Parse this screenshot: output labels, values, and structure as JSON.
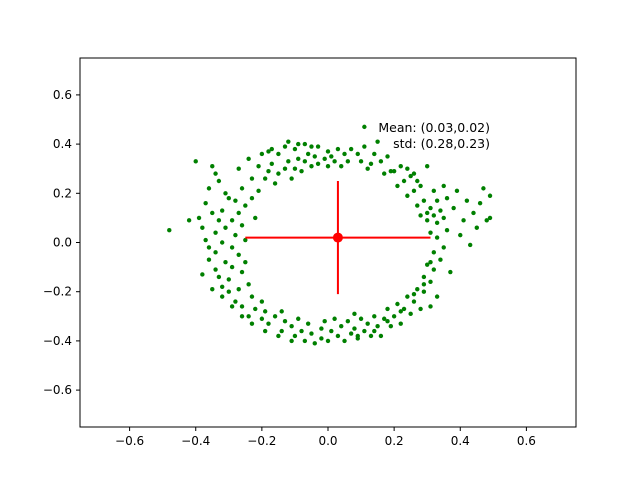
{
  "chart_data": {
    "type": "scatter",
    "title": "",
    "xlabel": "",
    "ylabel": "",
    "xlim": [
      -0.75,
      0.75
    ],
    "ylim": [
      -0.75,
      0.75
    ],
    "grid": false,
    "xticks": [
      -0.6,
      -0.4,
      -0.2,
      0.0,
      0.2,
      0.4,
      0.6
    ],
    "yticks": [
      -0.6,
      -0.4,
      -0.2,
      0.0,
      0.2,
      0.4,
      0.6
    ],
    "xtick_labels": [
      "−0.6",
      "−0.4",
      "−0.2",
      "0.0",
      "0.2",
      "0.4",
      "0.6"
    ],
    "ytick_labels": [
      "−0.6",
      "−0.4",
      "−0.2",
      "0.0",
      "0.2",
      "0.4",
      "0.6"
    ],
    "scatter_color": "#008000",
    "points": [
      [
        -0.48,
        0.05
      ],
      [
        -0.42,
        0.09
      ],
      [
        -0.4,
        0.33
      ],
      [
        -0.39,
        0.1
      ],
      [
        -0.38,
        0.06
      ],
      [
        -0.37,
        0.16
      ],
      [
        -0.37,
        0.01
      ],
      [
        -0.36,
        -0.02
      ],
      [
        -0.36,
        -0.07
      ],
      [
        -0.35,
        0.31
      ],
      [
        -0.35,
        0.12
      ],
      [
        -0.34,
        0.28
      ],
      [
        -0.34,
        0.04
      ],
      [
        -0.34,
        -0.04
      ],
      [
        -0.34,
        -0.11
      ],
      [
        -0.33,
        0.09
      ],
      [
        -0.33,
        -0.14
      ],
      [
        -0.32,
        0.13
      ],
      [
        -0.32,
        0.0
      ],
      [
        -0.32,
        -0.18
      ],
      [
        -0.31,
        0.2
      ],
      [
        -0.31,
        0.06
      ],
      [
        -0.31,
        -0.08
      ],
      [
        -0.3,
        -0.15
      ],
      [
        -0.3,
        -0.2
      ],
      [
        -0.29,
        0.09
      ],
      [
        -0.29,
        -0.02
      ],
      [
        -0.29,
        -0.1
      ],
      [
        -0.28,
        0.17
      ],
      [
        -0.28,
        0.03
      ],
      [
        -0.28,
        -0.24
      ],
      [
        -0.27,
        0.12
      ],
      [
        -0.27,
        -0.05
      ],
      [
        -0.27,
        -0.19
      ],
      [
        -0.26,
        0.22
      ],
      [
        -0.26,
        0.07
      ],
      [
        -0.26,
        -0.12
      ],
      [
        -0.26,
        -0.26
      ],
      [
        -0.25,
        0.15
      ],
      [
        -0.25,
        0.01
      ],
      [
        -0.25,
        -0.08
      ],
      [
        -0.24,
        -0.17
      ],
      [
        -0.24,
        -0.3
      ],
      [
        -0.23,
        0.26
      ],
      [
        -0.23,
        0.18
      ],
      [
        -0.23,
        -0.22
      ],
      [
        -0.22,
        0.1
      ],
      [
        -0.22,
        -0.27
      ],
      [
        -0.21,
        0.31
      ],
      [
        -0.21,
        0.21
      ],
      [
        -0.2,
        -0.31
      ],
      [
        -0.2,
        -0.24
      ],
      [
        -0.19,
        0.26
      ],
      [
        -0.19,
        -0.28
      ],
      [
        -0.18,
        0.37
      ],
      [
        -0.18,
        0.29
      ],
      [
        -0.18,
        -0.33
      ],
      [
        -0.17,
        0.32
      ],
      [
        -0.16,
        0.24
      ],
      [
        -0.16,
        -0.3
      ],
      [
        -0.15,
        0.36
      ],
      [
        -0.15,
        0.28
      ],
      [
        -0.14,
        -0.36
      ],
      [
        -0.14,
        -0.28
      ],
      [
        -0.13,
        0.3
      ],
      [
        -0.13,
        -0.32
      ],
      [
        -0.12,
        0.41
      ],
      [
        -0.12,
        0.33
      ],
      [
        -0.11,
        0.26
      ],
      [
        -0.11,
        -0.34
      ],
      [
        -0.1,
        0.38
      ],
      [
        -0.1,
        0.3
      ],
      [
        -0.1,
        -0.38
      ],
      [
        -0.09,
        0.34
      ],
      [
        -0.09,
        -0.31
      ],
      [
        -0.08,
        0.29
      ],
      [
        -0.08,
        -0.36
      ],
      [
        -0.07,
        0.4
      ],
      [
        -0.07,
        0.33
      ],
      [
        -0.07,
        -0.4
      ],
      [
        -0.06,
        0.36
      ],
      [
        -0.06,
        -0.33
      ],
      [
        -0.05,
        0.31
      ],
      [
        -0.05,
        -0.37
      ],
      [
        -0.04,
        0.35
      ],
      [
        -0.04,
        -0.41
      ],
      [
        -0.03,
        0.39
      ],
      [
        -0.03,
        0.32
      ],
      [
        -0.02,
        -0.35
      ],
      [
        -0.02,
        -0.39
      ],
      [
        -0.01,
        0.34
      ],
      [
        -0.01,
        -0.32
      ],
      [
        0.0,
        0.37
      ],
      [
        0.0,
        0.31
      ],
      [
        0.0,
        -0.4
      ],
      [
        0.01,
        0.35
      ],
      [
        0.01,
        -0.36
      ],
      [
        0.02,
        0.33
      ],
      [
        0.02,
        -0.31
      ],
      [
        0.03,
        0.38
      ],
      [
        0.03,
        -0.38
      ],
      [
        0.04,
        0.31
      ],
      [
        0.04,
        -0.34
      ],
      [
        0.05,
        0.36
      ],
      [
        0.05,
        -0.4
      ],
      [
        0.06,
        0.33
      ],
      [
        0.06,
        -0.32
      ],
      [
        0.07,
        -0.37
      ],
      [
        0.08,
        -0.29
      ],
      [
        0.08,
        -0.35
      ],
      [
        0.09,
        0.36
      ],
      [
        0.09,
        -0.39
      ],
      [
        0.1,
        0.33
      ],
      [
        0.1,
        -0.31
      ],
      [
        0.11,
        0.47
      ],
      [
        0.11,
        0.39
      ],
      [
        0.11,
        -0.36
      ],
      [
        0.12,
        0.3
      ],
      [
        0.12,
        -0.33
      ],
      [
        0.13,
        -0.38
      ],
      [
        0.14,
        0.36
      ],
      [
        0.14,
        -0.3
      ],
      [
        0.15,
        0.41
      ],
      [
        0.15,
        -0.34
      ],
      [
        0.16,
        0.33
      ],
      [
        0.16,
        -0.38
      ],
      [
        0.17,
        0.28
      ],
      [
        0.17,
        -0.31
      ],
      [
        0.18,
        0.35
      ],
      [
        0.18,
        -0.27
      ],
      [
        0.19,
        -0.34
      ],
      [
        0.2,
        0.29
      ],
      [
        0.2,
        -0.3
      ],
      [
        0.21,
        0.23
      ],
      [
        0.21,
        -0.25
      ],
      [
        0.22,
        0.31
      ],
      [
        0.22,
        -0.33
      ],
      [
        0.23,
        0.25
      ],
      [
        0.23,
        -0.27
      ],
      [
        0.24,
        0.19
      ],
      [
        0.24,
        -0.22
      ],
      [
        0.25,
        0.27
      ],
      [
        0.25,
        -0.29
      ],
      [
        0.26,
        0.21
      ],
      [
        0.26,
        -0.24
      ],
      [
        0.27,
        0.15
      ],
      [
        0.27,
        -0.19
      ],
      [
        0.28,
        0.23
      ],
      [
        0.28,
        0.11
      ],
      [
        0.28,
        -0.27
      ],
      [
        0.29,
        0.17
      ],
      [
        0.29,
        -0.14
      ],
      [
        0.29,
        -0.2
      ],
      [
        0.3,
        0.31
      ],
      [
        0.3,
        0.12
      ],
      [
        0.3,
        0.09
      ],
      [
        0.3,
        -0.09
      ],
      [
        0.31,
        0.14
      ],
      [
        0.31,
        0.04
      ],
      [
        0.31,
        -0.16
      ],
      [
        0.31,
        -0.26
      ],
      [
        0.32,
        0.21
      ],
      [
        0.32,
        0.11
      ],
      [
        0.32,
        -0.04
      ],
      [
        0.32,
        -0.11
      ],
      [
        0.33,
        0.17
      ],
      [
        0.33,
        0.08
      ],
      [
        0.33,
        0.02
      ],
      [
        0.33,
        -0.22
      ],
      [
        0.34,
        0.13
      ],
      [
        0.34,
        -0.07
      ],
      [
        0.35,
        0.23
      ],
      [
        0.35,
        0.1
      ],
      [
        0.35,
        -0.02
      ],
      [
        0.36,
        0.05
      ],
      [
        0.36,
        0.18
      ],
      [
        0.37,
        -0.12
      ],
      [
        0.38,
        0.14
      ],
      [
        0.39,
        0.21
      ],
      [
        0.4,
        0.03
      ],
      [
        0.41,
        0.09
      ],
      [
        0.42,
        0.17
      ],
      [
        0.43,
        -0.01
      ],
      [
        0.44,
        0.12
      ],
      [
        0.45,
        0.06
      ],
      [
        0.46,
        0.16
      ],
      [
        0.47,
        0.22
      ],
      [
        0.48,
        0.09
      ],
      [
        0.49,
        0.1
      ],
      [
        0.49,
        0.19
      ],
      [
        -0.36,
        0.22
      ],
      [
        -0.33,
        0.25
      ],
      [
        -0.3,
        0.18
      ],
      [
        -0.27,
        0.3
      ],
      [
        -0.24,
        0.34
      ],
      [
        -0.2,
        0.36
      ],
      [
        -0.17,
        0.38
      ],
      [
        -0.13,
        0.39
      ],
      [
        -0.09,
        0.4
      ],
      [
        -0.05,
        0.39
      ],
      [
        0.07,
        0.38
      ],
      [
        0.13,
        0.32
      ],
      [
        0.19,
        0.29
      ],
      [
        0.24,
        0.3
      ],
      [
        0.26,
        0.28
      ],
      [
        0.27,
        0.25
      ],
      [
        -0.38,
        -0.13
      ],
      [
        -0.35,
        -0.19
      ],
      [
        -0.32,
        -0.22
      ],
      [
        -0.29,
        -0.26
      ],
      [
        -0.26,
        -0.3
      ],
      [
        -0.23,
        -0.33
      ],
      [
        -0.19,
        -0.36
      ],
      [
        -0.15,
        -0.38
      ],
      [
        -0.11,
        -0.4
      ],
      [
        0.09,
        -0.38
      ],
      [
        0.14,
        -0.36
      ],
      [
        0.18,
        -0.32
      ],
      [
        0.22,
        -0.28
      ],
      [
        0.26,
        -0.21
      ],
      [
        0.29,
        -0.17
      ],
      [
        0.31,
        -0.08
      ]
    ],
    "mean": {
      "x": 0.03,
      "y": 0.02
    },
    "std": {
      "x": 0.28,
      "y": 0.23
    },
    "mean_marker_color": "#ff0000",
    "errorbar_color": "#ff0000",
    "annotation": {
      "line1": "Mean: (0.03,0.02)",
      "line2": "std: (0.28,0.23)"
    }
  }
}
